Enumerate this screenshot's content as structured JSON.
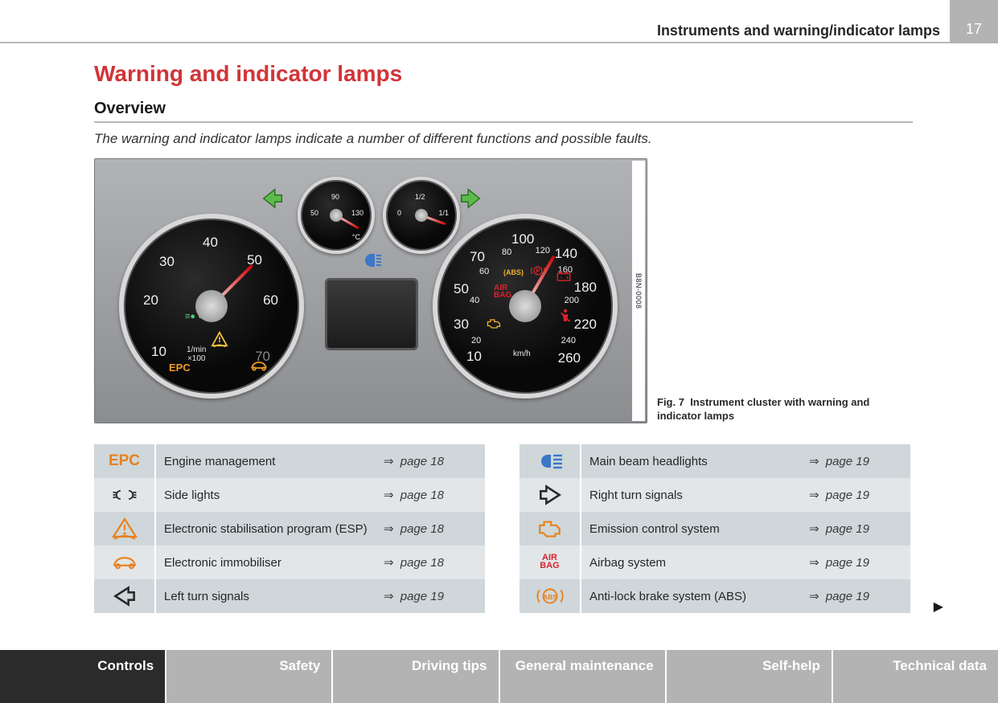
{
  "header": {
    "title": "Instruments and warning/indicator lamps",
    "page_number": "17"
  },
  "main_heading": "Warning and indicator lamps",
  "sub_heading": "Overview",
  "intro": "The warning and indicator lamps indicate a number of different functions and possible faults.",
  "figure": {
    "bbn": "B8N-0008",
    "caption_prefix": "Fig. 7",
    "caption": "Instrument cluster with warning and indicator lamps",
    "tach": {
      "unit": "1/min\n×100",
      "ticks": [
        "10",
        "20",
        "30",
        "40",
        "50",
        "60",
        "70"
      ],
      "epc": "EPC"
    },
    "speedo": {
      "unit": "km/h",
      "ticks_outer": [
        "10",
        "30",
        "50",
        "70",
        "100",
        "140",
        "180",
        "220",
        "260"
      ],
      "ticks_inner": [
        "20",
        "40",
        "60",
        "80",
        "120",
        "160",
        "200",
        "240"
      ],
      "airbag": "AIR\nBAG"
    },
    "temp": {
      "ticks": [
        "50",
        "90",
        "130"
      ],
      "unit": "°C"
    },
    "fuel": {
      "ticks": [
        "0",
        "1/2",
        "1/1"
      ]
    }
  },
  "tables": {
    "left": [
      {
        "icon": "epc",
        "desc": "Engine management",
        "page": "page 18"
      },
      {
        "icon": "sidelights",
        "desc": "Side lights",
        "page": "page 18"
      },
      {
        "icon": "esp",
        "desc": "Electronic stabilisation program (ESP)",
        "page": "page 18"
      },
      {
        "icon": "immobiliser",
        "desc": "Electronic immobiliser",
        "page": "page 18"
      },
      {
        "icon": "left-turn",
        "desc": "Left turn signals",
        "page": "page 19"
      }
    ],
    "right": [
      {
        "icon": "main-beam",
        "desc": "Main beam headlights",
        "page": "page 19"
      },
      {
        "icon": "right-turn",
        "desc": "Right turn signals",
        "page": "page 19"
      },
      {
        "icon": "emission",
        "desc": "Emission control system",
        "page": "page 19"
      },
      {
        "icon": "airbag",
        "desc": "Airbag system",
        "page": "page 19"
      },
      {
        "icon": "abs",
        "desc": "Anti-lock brake system (ABS)",
        "page": "page 19"
      }
    ]
  },
  "tabs": [
    {
      "label": "Controls",
      "active": true
    },
    {
      "label": "Safety",
      "active": false
    },
    {
      "label": "Driving tips",
      "active": false
    },
    {
      "label": "General maintenance",
      "active": false
    },
    {
      "label": "Self-help",
      "active": false
    },
    {
      "label": "Technical data",
      "active": false
    }
  ],
  "colors": {
    "heading_red": "#d13438",
    "tab_gray": "#b3b3b3",
    "tab_active": "#2b2b2b",
    "row_odd": "#cfd7da",
    "row_even": "#e2e6e8",
    "orange": "#e8811c",
    "red": "#d6252f",
    "blue": "#3a78c8",
    "green_arrow": "#5bbb4a"
  }
}
